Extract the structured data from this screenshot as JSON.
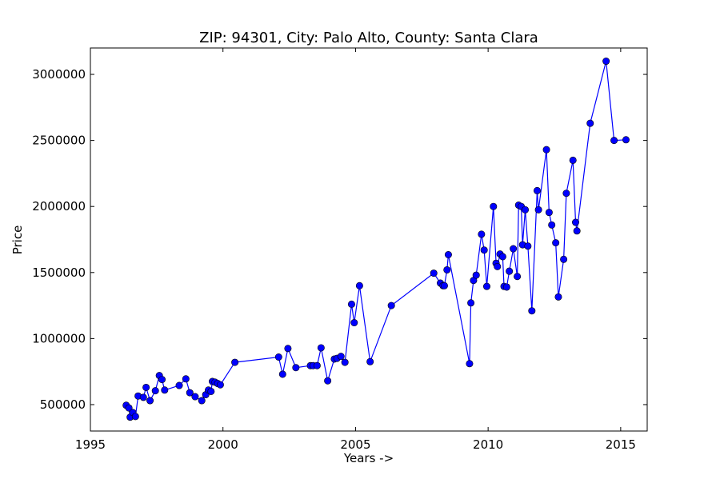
{
  "chart_data": {
    "type": "line",
    "title": "ZIP: 94301, City: Palo Alto, County: Santa Clara",
    "xlabel": "Years ->",
    "ylabel": "Price",
    "xlim": [
      1995,
      2016
    ],
    "ylim": [
      300000,
      3200000
    ],
    "xticks": [
      1995,
      2000,
      2005,
      2010,
      2015
    ],
    "yticks": [
      500000,
      1000000,
      1500000,
      2000000,
      2500000,
      3000000
    ],
    "grid": false,
    "legend": "none",
    "series": [
      {
        "color": "#0000ff",
        "marker": "circle",
        "points": [
          [
            1996.35,
            495000
          ],
          [
            1996.45,
            475000
          ],
          [
            1996.5,
            405000
          ],
          [
            1996.6,
            440000
          ],
          [
            1996.7,
            410000
          ],
          [
            1996.8,
            565000
          ],
          [
            1997.0,
            555000
          ],
          [
            1997.1,
            630000
          ],
          [
            1997.25,
            530000
          ],
          [
            1997.45,
            605000
          ],
          [
            1997.6,
            720000
          ],
          [
            1997.7,
            690000
          ],
          [
            1997.8,
            610000
          ],
          [
            1998.35,
            645000
          ],
          [
            1998.6,
            695000
          ],
          [
            1998.75,
            590000
          ],
          [
            1998.95,
            560000
          ],
          [
            1999.2,
            530000
          ],
          [
            1999.35,
            575000
          ],
          [
            1999.45,
            610000
          ],
          [
            1999.55,
            600000
          ],
          [
            1999.6,
            675000
          ],
          [
            1999.7,
            670000
          ],
          [
            1999.8,
            660000
          ],
          [
            1999.9,
            650000
          ],
          [
            2000.45,
            820000
          ],
          [
            2002.1,
            860000
          ],
          [
            2002.25,
            730000
          ],
          [
            2002.45,
            925000
          ],
          [
            2002.75,
            780000
          ],
          [
            2003.3,
            795000
          ],
          [
            2003.4,
            795000
          ],
          [
            2003.55,
            795000
          ],
          [
            2003.7,
            930000
          ],
          [
            2003.95,
            680000
          ],
          [
            2004.2,
            845000
          ],
          [
            2004.3,
            850000
          ],
          [
            2004.45,
            865000
          ],
          [
            2004.6,
            820000
          ],
          [
            2004.85,
            1260000
          ],
          [
            2004.95,
            1120000
          ],
          [
            2005.15,
            1400000
          ],
          [
            2005.55,
            825000
          ],
          [
            2006.35,
            1250000
          ],
          [
            2007.95,
            1495000
          ],
          [
            2008.2,
            1420000
          ],
          [
            2008.3,
            1400000
          ],
          [
            2008.35,
            1400000
          ],
          [
            2008.45,
            1520000
          ],
          [
            2008.5,
            1635000
          ],
          [
            2009.3,
            810000
          ],
          [
            2009.35,
            1270000
          ],
          [
            2009.45,
            1440000
          ],
          [
            2009.55,
            1480000
          ],
          [
            2009.75,
            1790000
          ],
          [
            2009.85,
            1670000
          ],
          [
            2009.95,
            1395000
          ],
          [
            2010.2,
            2000000
          ],
          [
            2010.3,
            1570000
          ],
          [
            2010.35,
            1545000
          ],
          [
            2010.45,
            1640000
          ],
          [
            2010.55,
            1620000
          ],
          [
            2010.6,
            1395000
          ],
          [
            2010.7,
            1390000
          ],
          [
            2010.8,
            1510000
          ],
          [
            2010.95,
            1680000
          ],
          [
            2011.1,
            1470000
          ],
          [
            2011.15,
            2010000
          ],
          [
            2011.25,
            2000000
          ],
          [
            2011.3,
            1710000
          ],
          [
            2011.4,
            1975000
          ],
          [
            2011.5,
            1700000
          ],
          [
            2011.65,
            1210000
          ],
          [
            2011.85,
            2120000
          ],
          [
            2011.9,
            1975000
          ],
          [
            2012.2,
            2430000
          ],
          [
            2012.3,
            1955000
          ],
          [
            2012.4,
            1860000
          ],
          [
            2012.55,
            1725000
          ],
          [
            2012.65,
            1315000
          ],
          [
            2012.85,
            1600000
          ],
          [
            2012.95,
            2100000
          ],
          [
            2013.2,
            2350000
          ],
          [
            2013.3,
            1880000
          ],
          [
            2013.35,
            1815000
          ],
          [
            2013.85,
            2630000
          ],
          [
            2014.45,
            3100000
          ],
          [
            2014.75,
            2500000
          ],
          [
            2015.2,
            2505000
          ]
        ]
      }
    ]
  }
}
